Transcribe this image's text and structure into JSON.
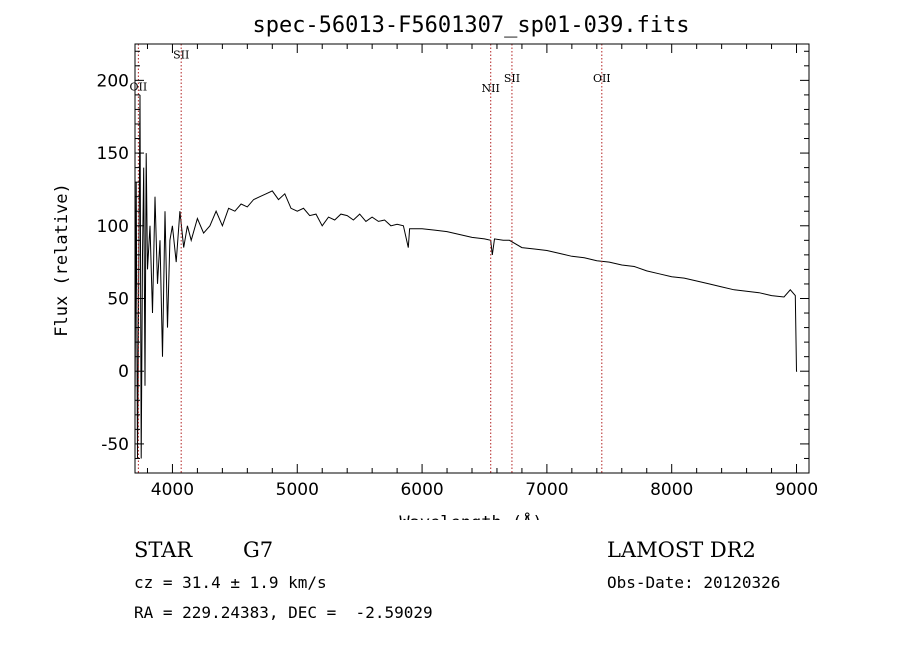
{
  "chart_data": {
    "type": "line",
    "title": "spec-56013-F5601307_sp01-039.fits",
    "xlabel": "Wavelength (Å)",
    "ylabel": "Flux (relative)",
    "xlim": [
      3700,
      9100
    ],
    "ylim": [
      -70,
      225
    ],
    "xticks": [
      4000,
      5000,
      6000,
      7000,
      8000,
      9000
    ],
    "yticks": [
      -50,
      0,
      50,
      100,
      150,
      200
    ],
    "grid": false,
    "series": [
      {
        "x": [
          3700,
          3710,
          3720,
          3730,
          3740,
          3750,
          3760,
          3770,
          3780,
          3790,
          3800,
          3820,
          3840,
          3860,
          3880,
          3900,
          3920,
          3940,
          3960,
          3980,
          4000,
          4030,
          4060,
          4090,
          4120,
          4150,
          4200,
          4250,
          4300,
          4350,
          4400,
          4450,
          4500,
          4550,
          4600,
          4650,
          4700,
          4750,
          4800,
          4850,
          4900,
          4950,
          5000,
          5050,
          5100,
          5150,
          5200,
          5250,
          5300,
          5350,
          5400,
          5450,
          5500,
          5550,
          5600,
          5650,
          5700,
          5750,
          5800,
          5850,
          5890,
          5900,
          5950,
          6000,
          6100,
          6200,
          6300,
          6400,
          6500,
          6550,
          6563,
          6580,
          6650,
          6700,
          6800,
          6900,
          7000,
          7100,
          7200,
          7300,
          7400,
          7500,
          7600,
          7700,
          7800,
          7900,
          8000,
          8100,
          8200,
          8300,
          8400,
          8500,
          8600,
          8700,
          8800,
          8900,
          8950,
          8990,
          9000,
          9005
        ],
        "y": [
          -20,
          130,
          -60,
          60,
          190,
          -60,
          80,
          140,
          -10,
          150,
          70,
          100,
          40,
          120,
          60,
          90,
          10,
          110,
          30,
          90,
          100,
          75,
          110,
          85,
          100,
          90,
          105,
          95,
          100,
          110,
          100,
          112,
          110,
          115,
          113,
          118,
          120,
          122,
          124,
          118,
          122,
          112,
          110,
          112,
          107,
          108,
          100,
          106,
          104,
          108,
          107,
          104,
          108,
          103,
          106,
          103,
          104,
          100,
          101,
          100,
          85,
          98,
          98,
          98,
          97,
          96,
          94,
          92,
          91,
          90,
          80,
          91,
          90,
          90,
          85,
          84,
          83,
          81,
          79,
          78,
          76,
          75,
          73,
          72,
          69,
          67,
          65,
          64,
          62,
          60,
          58,
          56,
          55,
          54,
          52,
          51,
          56,
          52,
          0,
          0
        ]
      }
    ],
    "lines": [
      {
        "label": "OII",
        "x": 3727,
        "label_y": 193
      },
      {
        "label": "SII",
        "x": 4070,
        "label_y": 215
      },
      {
        "label": "NII",
        "x": 6550,
        "label_y": 192
      },
      {
        "label": "SII",
        "x": 6720,
        "label_y": 199
      },
      {
        "label": "OII",
        "x": 7440,
        "label_y": 199
      }
    ]
  },
  "info": {
    "class": "STAR",
    "subclass": "G7",
    "survey": "LAMOST DR2",
    "redshift": "cz = 31.4 ± 1.9 km/s",
    "obs_date": "Obs-Date: 20120326",
    "coords": "RA = 229.24383, DEC =  -2.59029"
  }
}
